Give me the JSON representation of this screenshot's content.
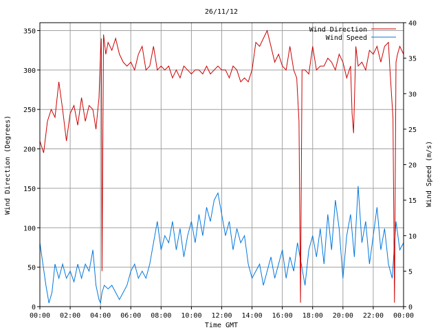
{
  "chart_data": {
    "type": "line",
    "title": "26/11/12",
    "xlabel": "Time GMT",
    "ylabel_left": "Wind Direction (Degrees)",
    "ylabel_right": "Wind Speed (m/s)",
    "x_unit": "hours",
    "xlim": [
      0,
      24
    ],
    "ylim_left": [
      0,
      360
    ],
    "ylim_right": [
      0,
      40
    ],
    "x_ticks": [
      0,
      2,
      4,
      6,
      8,
      10,
      12,
      14,
      16,
      18,
      20,
      22,
      24
    ],
    "x_tick_labels": [
      "00:00",
      "02:00",
      "04:00",
      "06:00",
      "08:00",
      "10:00",
      "12:00",
      "14:00",
      "16:00",
      "18:00",
      "20:00",
      "22:00",
      "00:00"
    ],
    "y_left_ticks": [
      0,
      50,
      100,
      150,
      200,
      250,
      300,
      350
    ],
    "y_left_tick_labels": [
      "0",
      "50",
      "100",
      "150",
      "200",
      "250",
      "300",
      "350"
    ],
    "y_right_ticks": [
      0,
      5,
      10,
      15,
      20,
      25,
      30,
      35,
      40
    ],
    "y_right_tick_labels": [
      "0",
      "5",
      "10",
      "15",
      "20",
      "25",
      "30",
      "35",
      "40"
    ],
    "grid": true,
    "legend_position": "top-right",
    "series": [
      {
        "name": "Wind Direction",
        "axis": "left",
        "color": "#cc0000",
        "x": [
          0,
          0.25,
          0.5,
          0.75,
          1.0,
          1.25,
          1.5,
          1.75,
          2.0,
          2.25,
          2.5,
          2.75,
          3.0,
          3.25,
          3.5,
          3.7,
          3.9,
          4.0,
          4.05,
          4.1,
          4.2,
          4.35,
          4.5,
          4.75,
          5.0,
          5.25,
          5.5,
          5.75,
          6.0,
          6.25,
          6.5,
          6.75,
          7.0,
          7.25,
          7.5,
          7.75,
          8.0,
          8.25,
          8.5,
          8.75,
          9.0,
          9.25,
          9.5,
          9.75,
          10.0,
          10.25,
          10.5,
          10.75,
          11.0,
          11.25,
          11.5,
          11.75,
          12.0,
          12.25,
          12.5,
          12.75,
          13.0,
          13.25,
          13.5,
          13.75,
          14.0,
          14.25,
          14.5,
          14.75,
          15.0,
          15.25,
          15.5,
          15.75,
          16.0,
          16.25,
          16.5,
          16.75,
          16.95,
          17.1,
          17.2,
          17.3,
          17.5,
          17.75,
          18.0,
          18.25,
          18.5,
          18.75,
          19.0,
          19.25,
          19.5,
          19.75,
          20.0,
          20.25,
          20.5,
          20.6,
          20.7,
          20.85,
          21.0,
          21.25,
          21.5,
          21.75,
          22.0,
          22.25,
          22.5,
          22.75,
          23.0,
          23.1,
          23.2,
          23.3,
          23.4,
          23.5,
          23.6,
          23.75,
          24.0
        ],
        "values": [
          210,
          195,
          235,
          250,
          240,
          285,
          250,
          210,
          245,
          255,
          230,
          265,
          235,
          255,
          250,
          225,
          265,
          320,
          340,
          45,
          345,
          320,
          335,
          325,
          340,
          320,
          310,
          305,
          310,
          300,
          320,
          330,
          300,
          305,
          330,
          300,
          305,
          300,
          305,
          290,
          300,
          290,
          305,
          300,
          295,
          300,
          300,
          295,
          305,
          295,
          300,
          305,
          300,
          300,
          290,
          305,
          300,
          285,
          290,
          285,
          300,
          335,
          330,
          340,
          350,
          330,
          310,
          320,
          305,
          300,
          330,
          300,
          290,
          235,
          5,
          300,
          300,
          295,
          330,
          300,
          305,
          305,
          315,
          310,
          300,
          320,
          310,
          290,
          305,
          245,
          220,
          330,
          305,
          310,
          300,
          325,
          320,
          330,
          310,
          330,
          335,
          300,
          270,
          240,
          5,
          310,
          320,
          330,
          320
        ]
      },
      {
        "name": "Wind Speed",
        "axis": "right",
        "color": "#0077dd",
        "x": [
          0,
          0.2,
          0.4,
          0.6,
          0.8,
          1.0,
          1.25,
          1.5,
          1.75,
          2.0,
          2.25,
          2.5,
          2.75,
          3.0,
          3.25,
          3.5,
          3.7,
          3.9,
          4.0,
          4.1,
          4.25,
          4.5,
          4.75,
          5.0,
          5.25,
          5.5,
          5.75,
          6.0,
          6.25,
          6.5,
          6.75,
          7.0,
          7.25,
          7.5,
          7.75,
          8.0,
          8.25,
          8.5,
          8.75,
          9.0,
          9.25,
          9.5,
          9.75,
          10.0,
          10.25,
          10.5,
          10.75,
          11.0,
          11.25,
          11.5,
          11.75,
          12.0,
          12.25,
          12.5,
          12.75,
          13.0,
          13.25,
          13.5,
          13.75,
          14.0,
          14.25,
          14.5,
          14.75,
          15.0,
          15.25,
          15.5,
          15.75,
          16.0,
          16.25,
          16.5,
          16.75,
          17.0,
          17.25,
          17.5,
          17.75,
          18.0,
          18.25,
          18.5,
          18.75,
          19.0,
          19.25,
          19.5,
          19.75,
          20.0,
          20.25,
          20.5,
          20.75,
          21.0,
          21.25,
          21.5,
          21.75,
          22.0,
          22.25,
          22.5,
          22.75,
          23.0,
          23.25,
          23.5,
          23.75,
          24.0
        ],
        "values": [
          9,
          6,
          3,
          0.5,
          2,
          6,
          4,
          6,
          4,
          5,
          3.5,
          6,
          4,
          6,
          5,
          8,
          3,
          1,
          0.5,
          2,
          3,
          2.5,
          3,
          2,
          1,
          2,
          3,
          5,
          6,
          4,
          5,
          4,
          6,
          9,
          12,
          8,
          10,
          9,
          12,
          8,
          11,
          7,
          10,
          12,
          9,
          13,
          10,
          14,
          12,
          15,
          16,
          13,
          10,
          12,
          8,
          11,
          9,
          10,
          6,
          4,
          5,
          6,
          3,
          5,
          7,
          4,
          6,
          8,
          4,
          7,
          5,
          9,
          6,
          3,
          8,
          10,
          7,
          11,
          6,
          13,
          8,
          15,
          11,
          4,
          10,
          13,
          7,
          17,
          9,
          12,
          6,
          10,
          14,
          8,
          11,
          6,
          4,
          12,
          8,
          9
        ]
      }
    ]
  }
}
